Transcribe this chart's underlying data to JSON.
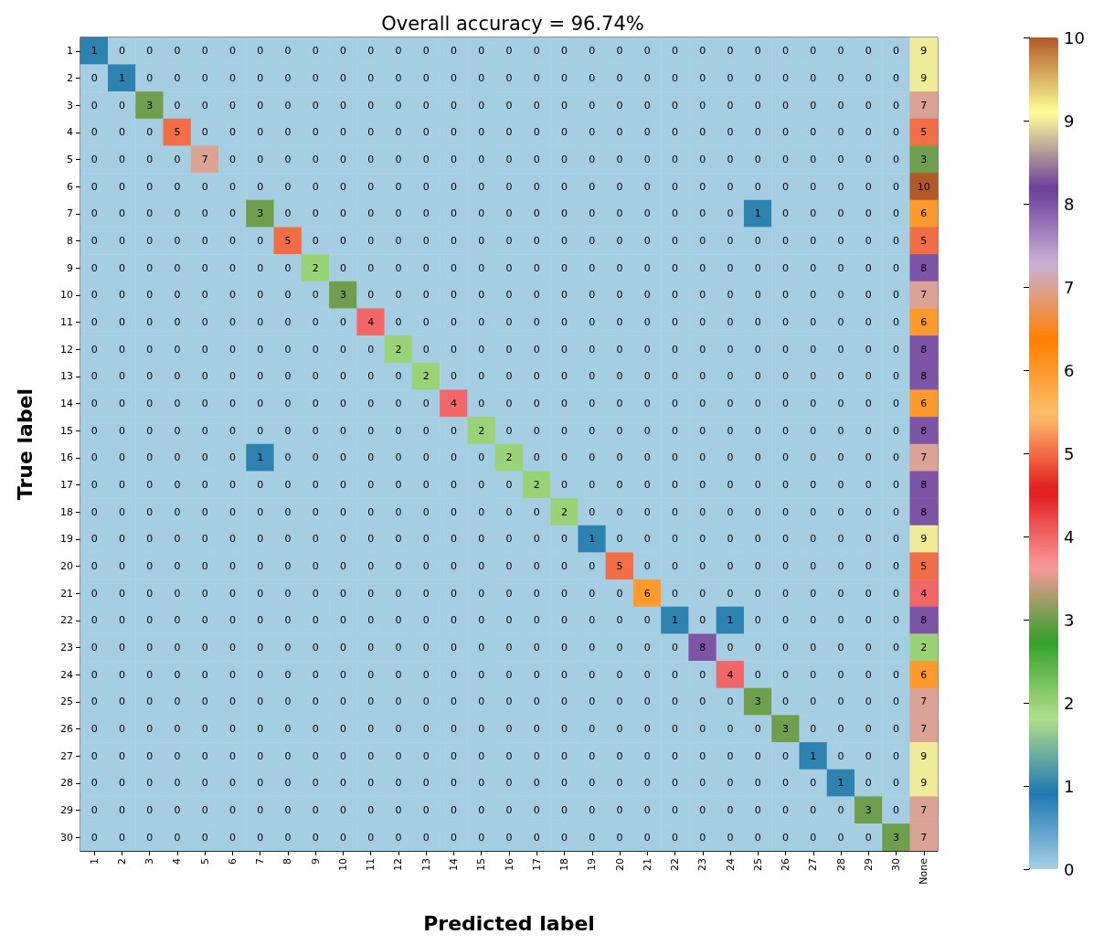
{
  "chart_data": {
    "type": "heatmap",
    "title": "Overall accuracy = 96.74%",
    "xlabel": "Predicted label",
    "ylabel": "True label",
    "categories": [
      "1",
      "2",
      "3",
      "4",
      "5",
      "6",
      "7",
      "8",
      "9",
      "10",
      "11",
      "12",
      "13",
      "14",
      "15",
      "16",
      "17",
      "18",
      "19",
      "20",
      "21",
      "22",
      "23",
      "24",
      "25",
      "26",
      "27",
      "28",
      "29",
      "30",
      "None"
    ],
    "y_categories": [
      "1",
      "2",
      "3",
      "4",
      "5",
      "6",
      "7",
      "8",
      "9",
      "10",
      "11",
      "12",
      "13",
      "14",
      "15",
      "16",
      "17",
      "18",
      "19",
      "20",
      "21",
      "22",
      "23",
      "24",
      "25",
      "26",
      "27",
      "28",
      "29",
      "30"
    ],
    "cells": [
      [
        1,
        0,
        0,
        0,
        0,
        0,
        0,
        0,
        0,
        0,
        0,
        0,
        0,
        0,
        0,
        0,
        0,
        0,
        0,
        0,
        0,
        0,
        0,
        0,
        0,
        0,
        0,
        0,
        0,
        0,
        9
      ],
      [
        0,
        1,
        0,
        0,
        0,
        0,
        0,
        0,
        0,
        0,
        0,
        0,
        0,
        0,
        0,
        0,
        0,
        0,
        0,
        0,
        0,
        0,
        0,
        0,
        0,
        0,
        0,
        0,
        0,
        0,
        9
      ],
      [
        0,
        0,
        3,
        0,
        0,
        0,
        0,
        0,
        0,
        0,
        0,
        0,
        0,
        0,
        0,
        0,
        0,
        0,
        0,
        0,
        0,
        0,
        0,
        0,
        0,
        0,
        0,
        0,
        0,
        0,
        7
      ],
      [
        0,
        0,
        0,
        5,
        0,
        0,
        0,
        0,
        0,
        0,
        0,
        0,
        0,
        0,
        0,
        0,
        0,
        0,
        0,
        0,
        0,
        0,
        0,
        0,
        0,
        0,
        0,
        0,
        0,
        0,
        5
      ],
      [
        0,
        0,
        0,
        0,
        7,
        0,
        0,
        0,
        0,
        0,
        0,
        0,
        0,
        0,
        0,
        0,
        0,
        0,
        0,
        0,
        0,
        0,
        0,
        0,
        0,
        0,
        0,
        0,
        0,
        0,
        3
      ],
      [
        0,
        0,
        0,
        0,
        0,
        0,
        0,
        0,
        0,
        0,
        0,
        0,
        0,
        0,
        0,
        0,
        0,
        0,
        0,
        0,
        0,
        0,
        0,
        0,
        0,
        0,
        0,
        0,
        0,
        0,
        10
      ],
      [
        0,
        0,
        0,
        0,
        0,
        0,
        3,
        0,
        0,
        0,
        0,
        0,
        0,
        0,
        0,
        0,
        0,
        0,
        0,
        0,
        0,
        0,
        0,
        0,
        1,
        0,
        0,
        0,
        0,
        0,
        6
      ],
      [
        0,
        0,
        0,
        0,
        0,
        0,
        0,
        5,
        0,
        0,
        0,
        0,
        0,
        0,
        0,
        0,
        0,
        0,
        0,
        0,
        0,
        0,
        0,
        0,
        0,
        0,
        0,
        0,
        0,
        0,
        5
      ],
      [
        0,
        0,
        0,
        0,
        0,
        0,
        0,
        0,
        2,
        0,
        0,
        0,
        0,
        0,
        0,
        0,
        0,
        0,
        0,
        0,
        0,
        0,
        0,
        0,
        0,
        0,
        0,
        0,
        0,
        0,
        8
      ],
      [
        0,
        0,
        0,
        0,
        0,
        0,
        0,
        0,
        0,
        3,
        0,
        0,
        0,
        0,
        0,
        0,
        0,
        0,
        0,
        0,
        0,
        0,
        0,
        0,
        0,
        0,
        0,
        0,
        0,
        0,
        7
      ],
      [
        0,
        0,
        0,
        0,
        0,
        0,
        0,
        0,
        0,
        0,
        4,
        0,
        0,
        0,
        0,
        0,
        0,
        0,
        0,
        0,
        0,
        0,
        0,
        0,
        0,
        0,
        0,
        0,
        0,
        0,
        6
      ],
      [
        0,
        0,
        0,
        0,
        0,
        0,
        0,
        0,
        0,
        0,
        0,
        2,
        0,
        0,
        0,
        0,
        0,
        0,
        0,
        0,
        0,
        0,
        0,
        0,
        0,
        0,
        0,
        0,
        0,
        0,
        8
      ],
      [
        0,
        0,
        0,
        0,
        0,
        0,
        0,
        0,
        0,
        0,
        0,
        0,
        2,
        0,
        0,
        0,
        0,
        0,
        0,
        0,
        0,
        0,
        0,
        0,
        0,
        0,
        0,
        0,
        0,
        0,
        8
      ],
      [
        0,
        0,
        0,
        0,
        0,
        0,
        0,
        0,
        0,
        0,
        0,
        0,
        0,
        4,
        0,
        0,
        0,
        0,
        0,
        0,
        0,
        0,
        0,
        0,
        0,
        0,
        0,
        0,
        0,
        0,
        6
      ],
      [
        0,
        0,
        0,
        0,
        0,
        0,
        0,
        0,
        0,
        0,
        0,
        0,
        0,
        0,
        2,
        0,
        0,
        0,
        0,
        0,
        0,
        0,
        0,
        0,
        0,
        0,
        0,
        0,
        0,
        0,
        8
      ],
      [
        0,
        0,
        0,
        0,
        0,
        0,
        1,
        0,
        0,
        0,
        0,
        0,
        0,
        0,
        0,
        2,
        0,
        0,
        0,
        0,
        0,
        0,
        0,
        0,
        0,
        0,
        0,
        0,
        0,
        0,
        7
      ],
      [
        0,
        0,
        0,
        0,
        0,
        0,
        0,
        0,
        0,
        0,
        0,
        0,
        0,
        0,
        0,
        0,
        2,
        0,
        0,
        0,
        0,
        0,
        0,
        0,
        0,
        0,
        0,
        0,
        0,
        0,
        8
      ],
      [
        0,
        0,
        0,
        0,
        0,
        0,
        0,
        0,
        0,
        0,
        0,
        0,
        0,
        0,
        0,
        0,
        0,
        2,
        0,
        0,
        0,
        0,
        0,
        0,
        0,
        0,
        0,
        0,
        0,
        0,
        8
      ],
      [
        0,
        0,
        0,
        0,
        0,
        0,
        0,
        0,
        0,
        0,
        0,
        0,
        0,
        0,
        0,
        0,
        0,
        0,
        1,
        0,
        0,
        0,
        0,
        0,
        0,
        0,
        0,
        0,
        0,
        0,
        9
      ],
      [
        0,
        0,
        0,
        0,
        0,
        0,
        0,
        0,
        0,
        0,
        0,
        0,
        0,
        0,
        0,
        0,
        0,
        0,
        0,
        5,
        0,
        0,
        0,
        0,
        0,
        0,
        0,
        0,
        0,
        0,
        5
      ],
      [
        0,
        0,
        0,
        0,
        0,
        0,
        0,
        0,
        0,
        0,
        0,
        0,
        0,
        0,
        0,
        0,
        0,
        0,
        0,
        0,
        6,
        0,
        0,
        0,
        0,
        0,
        0,
        0,
        0,
        0,
        4
      ],
      [
        0,
        0,
        0,
        0,
        0,
        0,
        0,
        0,
        0,
        0,
        0,
        0,
        0,
        0,
        0,
        0,
        0,
        0,
        0,
        0,
        0,
        1,
        0,
        1,
        0,
        0,
        0,
        0,
        0,
        0,
        8
      ],
      [
        0,
        0,
        0,
        0,
        0,
        0,
        0,
        0,
        0,
        0,
        0,
        0,
        0,
        0,
        0,
        0,
        0,
        0,
        0,
        0,
        0,
        0,
        8,
        0,
        0,
        0,
        0,
        0,
        0,
        0,
        2
      ],
      [
        0,
        0,
        0,
        0,
        0,
        0,
        0,
        0,
        0,
        0,
        0,
        0,
        0,
        0,
        0,
        0,
        0,
        0,
        0,
        0,
        0,
        0,
        0,
        4,
        0,
        0,
        0,
        0,
        0,
        0,
        6
      ],
      [
        0,
        0,
        0,
        0,
        0,
        0,
        0,
        0,
        0,
        0,
        0,
        0,
        0,
        0,
        0,
        0,
        0,
        0,
        0,
        0,
        0,
        0,
        0,
        0,
        3,
        0,
        0,
        0,
        0,
        0,
        7
      ],
      [
        0,
        0,
        0,
        0,
        0,
        0,
        0,
        0,
        0,
        0,
        0,
        0,
        0,
        0,
        0,
        0,
        0,
        0,
        0,
        0,
        0,
        0,
        0,
        0,
        0,
        3,
        0,
        0,
        0,
        0,
        7
      ],
      [
        0,
        0,
        0,
        0,
        0,
        0,
        0,
        0,
        0,
        0,
        0,
        0,
        0,
        0,
        0,
        0,
        0,
        0,
        0,
        0,
        0,
        0,
        0,
        0,
        0,
        0,
        1,
        0,
        0,
        0,
        9
      ],
      [
        0,
        0,
        0,
        0,
        0,
        0,
        0,
        0,
        0,
        0,
        0,
        0,
        0,
        0,
        0,
        0,
        0,
        0,
        0,
        0,
        0,
        0,
        0,
        0,
        0,
        0,
        0,
        1,
        0,
        0,
        9
      ],
      [
        0,
        0,
        0,
        0,
        0,
        0,
        0,
        0,
        0,
        0,
        0,
        0,
        0,
        0,
        0,
        0,
        0,
        0,
        0,
        0,
        0,
        0,
        0,
        0,
        0,
        0,
        0,
        0,
        3,
        0,
        7
      ],
      [
        0,
        0,
        0,
        0,
        0,
        0,
        0,
        0,
        0,
        0,
        0,
        0,
        0,
        0,
        0,
        0,
        0,
        0,
        0,
        0,
        0,
        0,
        0,
        0,
        0,
        0,
        0,
        0,
        0,
        3,
        7
      ]
    ],
    "data_labels": true,
    "clim": [
      0,
      10
    ],
    "cticks": [
      0,
      1,
      2,
      3,
      4,
      5,
      6,
      7,
      8,
      9,
      10
    ],
    "grid": false
  }
}
